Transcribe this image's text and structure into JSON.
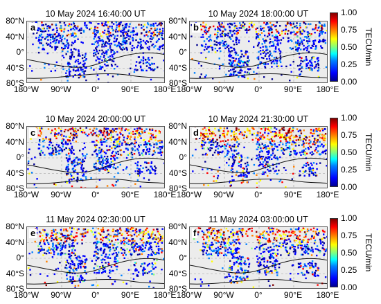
{
  "panels": [
    {
      "letter": "a",
      "title": "10 May 2024 16:40:00 UT"
    },
    {
      "letter": "b",
      "title": "10 May 2024 18:00:00 UT"
    },
    {
      "letter": "c",
      "title": "10 May 2024 20:00:00 UT"
    },
    {
      "letter": "d",
      "title": "10 May 2024 21:30:00 UT"
    },
    {
      "letter": "e",
      "title": "11 May 2024 02:30:00 UT"
    },
    {
      "letter": "f",
      "title": "11 May 2024 03:00:00 UT"
    }
  ],
  "lat_ticks": [
    "80°N",
    "40°N",
    "0°",
    "40°S",
    "80°S"
  ],
  "lon_ticks": [
    "180°W",
    "90°W",
    "0°",
    "90°E",
    "180°E"
  ],
  "colorbar": {
    "ticks": [
      "1.00",
      "0.75",
      "0.50",
      "0.25",
      "0.00"
    ],
    "unit": "TECU/min",
    "range": [
      0,
      1
    ],
    "colormap": [
      "#00008f",
      "#0000ff",
      "#0080ff",
      "#00ffff",
      "#80ff80",
      "#ffff00",
      "#ff8000",
      "#ff0000",
      "#800000"
    ]
  }
}
